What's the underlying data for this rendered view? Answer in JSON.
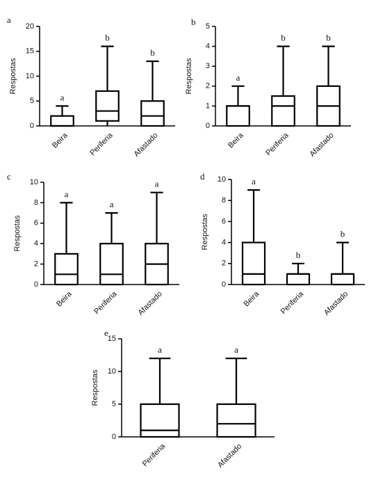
{
  "chart_data": [
    {
      "type": "box",
      "panel": "a",
      "ylabel": "Respostas",
      "categories": [
        "Beira",
        "Periferia",
        "Afastado"
      ],
      "min": [
        0,
        0,
        0
      ],
      "q1": [
        0,
        1,
        0
      ],
      "median": [
        0,
        3,
        2
      ],
      "q3": [
        2,
        7,
        5
      ],
      "max": [
        4,
        16,
        13
      ],
      "letters": [
        "a",
        "b",
        "b"
      ],
      "ylim": [
        0,
        20
      ],
      "yticks": [
        0,
        5,
        10,
        15,
        20
      ]
    },
    {
      "type": "box",
      "panel": "b",
      "ylabel": "Respostas",
      "categories": [
        "Beira",
        "Periferia",
        "Afastado"
      ],
      "min": [
        0,
        0,
        0
      ],
      "q1": [
        0,
        0,
        0
      ],
      "median": [
        1,
        1,
        1
      ],
      "q3": [
        1,
        1.5,
        2
      ],
      "max": [
        2,
        4,
        4
      ],
      "letters": [
        "a",
        "b",
        "b"
      ],
      "ylim": [
        0,
        5
      ],
      "yticks": [
        0,
        1,
        2,
        3,
        4,
        5
      ]
    },
    {
      "type": "box",
      "panel": "c",
      "ylabel": "Respostas",
      "categories": [
        "Beira",
        "Periferia",
        "Afastado"
      ],
      "min": [
        0,
        0,
        0
      ],
      "q1": [
        0,
        0,
        0
      ],
      "median": [
        1,
        1,
        2
      ],
      "q3": [
        3,
        4,
        4
      ],
      "max": [
        8,
        7,
        9
      ],
      "letters": [
        "a",
        "a",
        "a"
      ],
      "ylim": [
        0,
        10
      ],
      "yticks": [
        0,
        2,
        4,
        6,
        8,
        10
      ]
    },
    {
      "type": "box",
      "panel": "d",
      "ylabel": "Respostas",
      "categories": [
        "Beira",
        "Periferia",
        "Afastado"
      ],
      "min": [
        0,
        0,
        0
      ],
      "q1": [
        0,
        0,
        0
      ],
      "median": [
        1,
        1,
        1
      ],
      "q3": [
        4,
        1,
        1
      ],
      "max": [
        9,
        2,
        4
      ],
      "letters": [
        "a",
        "b",
        "b"
      ],
      "ylim": [
        0,
        10
      ],
      "yticks": [
        0,
        2,
        4,
        6,
        8,
        10
      ]
    },
    {
      "type": "box",
      "panel": "e",
      "ylabel": "Respostas",
      "categories": [
        "Periferia",
        "Afastado"
      ],
      "min": [
        0,
        0
      ],
      "q1": [
        0,
        0
      ],
      "median": [
        1,
        2
      ],
      "q3": [
        5,
        5
      ],
      "max": [
        12,
        12
      ],
      "letters": [
        "a",
        "a"
      ],
      "ylim": [
        0,
        15
      ],
      "yticks": [
        0,
        5,
        10,
        15
      ]
    }
  ]
}
